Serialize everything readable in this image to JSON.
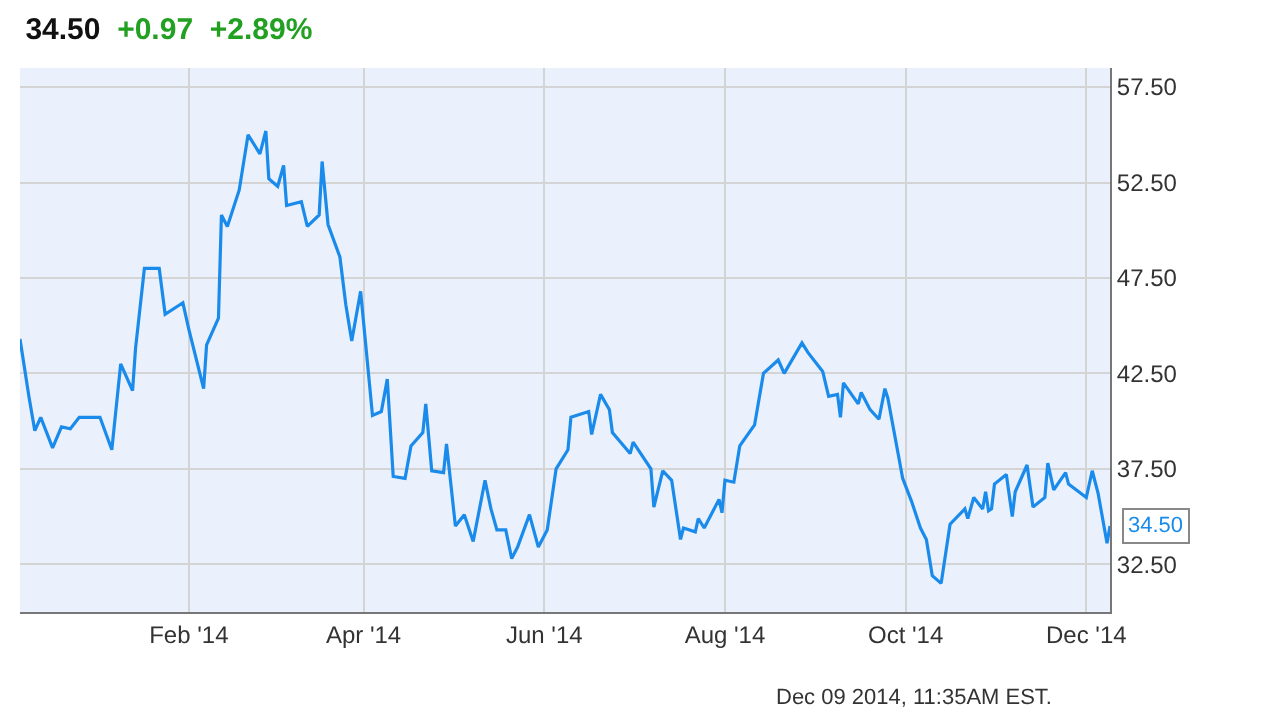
{
  "chart_data": {
    "type": "line",
    "title": "34.50",
    "subtitle": "+0.97  +2.89%",
    "x": [
      "2013-12-06",
      "2013-12-09",
      "2013-12-11",
      "2013-12-13",
      "2013-12-17",
      "2013-12-20",
      "2013-12-23",
      "2013-12-26",
      "2014-01-02",
      "2014-01-06",
      "2014-01-09",
      "2014-01-13",
      "2014-01-14",
      "2014-01-17",
      "2014-01-22",
      "2014-01-24",
      "2014-01-30",
      "2014-02-01",
      "2014-02-06",
      "2014-02-07",
      "2014-02-11",
      "2014-02-12",
      "2014-02-14",
      "2014-02-18",
      "2014-02-21",
      "2014-02-25",
      "2014-02-27",
      "2014-02-28",
      "2014-03-03",
      "2014-03-05",
      "2014-03-06",
      "2014-03-11",
      "2014-03-13",
      "2014-03-17",
      "2014-03-18",
      "2014-03-20",
      "2014-03-24",
      "2014-03-26",
      "2014-03-28",
      "2014-03-31",
      "2014-04-04",
      "2014-04-07",
      "2014-04-09",
      "2014-04-11",
      "2014-04-15",
      "2014-04-17",
      "2014-04-21",
      "2014-04-22",
      "2014-04-24",
      "2014-04-28",
      "2014-04-29",
      "2014-05-02",
      "2014-05-05",
      "2014-05-08",
      "2014-05-12",
      "2014-05-14",
      "2014-05-16",
      "2014-05-19",
      "2014-05-21",
      "2014-05-23",
      "2014-05-27",
      "2014-05-30",
      "2014-06-02",
      "2014-06-05",
      "2014-06-09",
      "2014-06-10",
      "2014-06-16",
      "2014-06-17",
      "2014-06-20",
      "2014-06-23",
      "2014-06-24",
      "2014-06-30",
      "2014-07-01",
      "2014-07-07",
      "2014-07-08",
      "2014-07-11",
      "2014-07-14",
      "2014-07-17",
      "2014-07-18",
      "2014-07-22",
      "2014-07-23",
      "2014-07-25",
      "2014-07-30",
      "2014-07-31",
      "2014-08-01",
      "2014-08-04",
      "2014-08-06",
      "2014-08-11",
      "2014-08-14",
      "2014-08-19",
      "2014-08-21",
      "2014-08-27",
      "2014-08-29",
      "2014-09-03",
      "2014-09-05",
      "2014-09-08",
      "2014-09-09",
      "2014-09-10",
      "2014-09-15",
      "2014-09-16",
      "2014-09-19",
      "2014-09-22",
      "2014-09-24",
      "2014-09-25",
      "2014-09-30",
      "2014-10-03",
      "2014-10-06",
      "2014-10-08",
      "2014-10-10",
      "2014-10-13",
      "2014-10-16",
      "2014-10-21",
      "2014-10-22",
      "2014-10-24",
      "2014-10-27",
      "2014-10-28",
      "2014-10-29",
      "2014-10-30",
      "2014-10-31",
      "2014-11-04",
      "2014-11-06",
      "2014-11-07",
      "2014-11-11",
      "2014-11-13",
      "2014-11-17",
      "2014-11-18",
      "2014-11-20",
      "2014-11-24",
      "2014-11-25",
      "2014-12-01",
      "2014-12-03",
      "2014-12-05",
      "2014-12-08",
      "2014-12-09"
    ],
    "series": [
      {
        "color": "#1a8beb",
        "values": [
          44.3,
          41.3,
          39.5,
          40.2,
          38.6,
          39.7,
          39.6,
          40.2,
          40.2,
          38.5,
          43.0,
          41.6,
          43.8,
          48.0,
          48.0,
          45.6,
          46.2,
          44.8,
          41.7,
          44.0,
          45.4,
          50.8,
          50.2,
          52.1,
          55.0,
          54.0,
          55.2,
          52.7,
          52.3,
          53.4,
          51.3,
          51.5,
          50.2,
          50.8,
          53.6,
          50.3,
          48.6,
          46.1,
          44.2,
          46.8,
          40.3,
          40.5,
          42.2,
          37.1,
          37.0,
          38.7,
          39.4,
          40.9,
          37.4,
          37.3,
          38.8,
          34.5,
          35.1,
          33.7,
          36.9,
          35.4,
          34.3,
          34.3,
          32.8,
          33.4,
          35.1,
          33.4,
          34.3,
          37.5,
          38.5,
          40.2,
          40.5,
          39.3,
          41.4,
          40.6,
          39.4,
          38.3,
          38.9,
          37.5,
          35.5,
          37.4,
          36.9,
          33.8,
          34.4,
          34.2,
          34.9,
          34.4,
          35.9,
          35.2,
          36.9,
          36.8,
          38.7,
          39.8,
          42.5,
          43.2,
          42.5,
          44.1,
          43.6,
          42.6,
          41.3,
          41.4,
          40.2,
          42.0,
          40.9,
          41.5,
          40.6,
          40.1,
          41.7,
          41.2,
          37.0,
          35.8,
          34.4,
          33.8,
          31.9,
          31.5,
          34.6,
          35.4,
          34.9,
          36.0,
          35.4,
          36.3,
          35.3,
          35.4,
          36.7,
          37.2,
          35.0,
          36.3,
          37.7,
          35.5,
          36.0,
          37.8,
          36.4,
          37.3,
          36.7,
          36.0,
          37.4,
          36.2,
          33.6,
          34.5
        ]
      }
    ],
    "xlim": [
      "2013-12-06",
      "2014-12-09"
    ],
    "xticks": [
      {
        "value": "2014-02-01",
        "label": "Feb '14"
      },
      {
        "value": "2014-04-01",
        "label": "Apr '14"
      },
      {
        "value": "2014-06-01",
        "label": "Jun '14"
      },
      {
        "value": "2014-08-01",
        "label": "Aug '14"
      },
      {
        "value": "2014-10-01",
        "label": "Oct '14"
      },
      {
        "value": "2014-12-01",
        "label": "Dec '14"
      }
    ],
    "ylim": [
      30,
      58.5
    ],
    "yticks": [
      {
        "value": 32.5,
        "label": "32.50"
      },
      {
        "value": 37.5,
        "label": "37.50"
      },
      {
        "value": 42.5,
        "label": "42.50"
      },
      {
        "value": 47.5,
        "label": "47.50"
      },
      {
        "value": 52.5,
        "label": "52.50"
      },
      {
        "value": 57.5,
        "label": "57.50"
      }
    ],
    "grid": true,
    "marker": "none",
    "line_style": "solid",
    "annotations": [
      {
        "text": "34.50",
        "x": "2014-12-09",
        "y": 34.5
      },
      "Dec 09 2014, 11:35AM EST."
    ]
  }
}
